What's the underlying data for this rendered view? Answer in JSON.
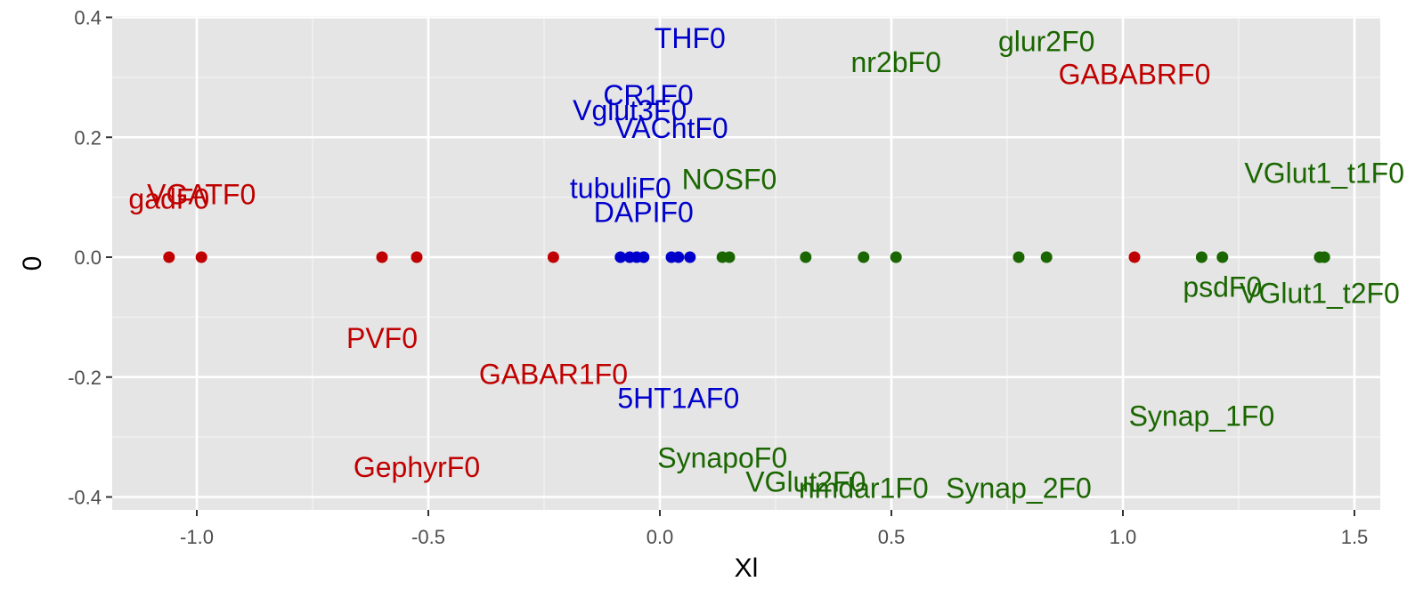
{
  "chart_data": {
    "type": "scatter",
    "title": "",
    "xlabel": "Xl",
    "ylabel": "0",
    "xlim": [
      -1.2,
      1.56
    ],
    "ylim": [
      -0.42,
      0.4
    ],
    "grid": true,
    "legend": "none",
    "background": "#e5e5e5",
    "x_ticks": [
      -1.0,
      -0.5,
      0.0,
      0.5,
      1.0,
      1.5
    ],
    "x_tick_labels": [
      "-1.0",
      "-0.5",
      "0.0",
      "0.5",
      "1.0",
      "1.5"
    ],
    "y_ticks": [
      -0.4,
      -0.2,
      0.0,
      0.2,
      0.4
    ],
    "y_tick_labels": [
      "-0.4",
      "-0.2",
      "0.0",
      "0.2",
      "0.4"
    ],
    "groups": [
      {
        "id": "red",
        "color": "#c00000"
      },
      {
        "id": "blue",
        "color": "#0000cc"
      },
      {
        "id": "green",
        "color": "#1a6600"
      }
    ],
    "points": [
      {
        "x": -1.06,
        "y": 0,
        "group": "red"
      },
      {
        "x": -0.99,
        "y": 0,
        "group": "red"
      },
      {
        "x": -0.6,
        "y": 0,
        "group": "red"
      },
      {
        "x": -0.525,
        "y": 0,
        "group": "red"
      },
      {
        "x": -0.23,
        "y": 0,
        "group": "red"
      },
      {
        "x": -0.085,
        "y": 0,
        "group": "blue"
      },
      {
        "x": -0.065,
        "y": 0,
        "group": "blue"
      },
      {
        "x": -0.05,
        "y": 0,
        "group": "blue"
      },
      {
        "x": -0.035,
        "y": 0,
        "group": "blue"
      },
      {
        "x": 0.025,
        "y": 0,
        "group": "blue"
      },
      {
        "x": 0.04,
        "y": 0,
        "group": "blue"
      },
      {
        "x": 0.065,
        "y": 0,
        "group": "blue"
      },
      {
        "x": 0.135,
        "y": 0,
        "group": "green"
      },
      {
        "x": 0.15,
        "y": 0,
        "group": "green"
      },
      {
        "x": 0.315,
        "y": 0,
        "group": "green"
      },
      {
        "x": 0.44,
        "y": 0,
        "group": "green"
      },
      {
        "x": 0.51,
        "y": 0,
        "group": "green"
      },
      {
        "x": 0.775,
        "y": 0,
        "group": "green"
      },
      {
        "x": 0.835,
        "y": 0,
        "group": "green"
      },
      {
        "x": 1.025,
        "y": 0,
        "group": "red"
      },
      {
        "x": 1.17,
        "y": 0,
        "group": "green"
      },
      {
        "x": 1.215,
        "y": 0,
        "group": "green"
      },
      {
        "x": 1.425,
        "y": 0,
        "group": "green"
      },
      {
        "x": 1.435,
        "y": 0,
        "group": "green"
      }
    ],
    "labels": [
      {
        "text": "VGATF0",
        "x": -0.99,
        "y": 0.105,
        "group": "red"
      },
      {
        "text": "gadF0",
        "x": -1.06,
        "y": 0.097,
        "group": "red"
      },
      {
        "text": "PVF0",
        "x": -0.6,
        "y": -0.135,
        "group": "red"
      },
      {
        "text": "GABAR1F0",
        "x": -0.23,
        "y": -0.195,
        "group": "red"
      },
      {
        "text": "GephyrF0",
        "x": -0.525,
        "y": -0.35,
        "group": "red"
      },
      {
        "text": "GABABRF0",
        "x": 1.025,
        "y": 0.305,
        "group": "red"
      },
      {
        "text": "THF0",
        "x": 0.065,
        "y": 0.365,
        "group": "blue"
      },
      {
        "text": "CR1F0",
        "x": -0.025,
        "y": 0.27,
        "group": "blue"
      },
      {
        "text": "Vglut3F0",
        "x": -0.065,
        "y": 0.245,
        "group": "blue"
      },
      {
        "text": "VAChtF0",
        "x": 0.025,
        "y": 0.215,
        "group": "blue"
      },
      {
        "text": "tubuliF0",
        "x": -0.085,
        "y": 0.115,
        "group": "blue"
      },
      {
        "text": "DAPIF0",
        "x": -0.035,
        "y": 0.075,
        "group": "blue"
      },
      {
        "text": "5HT1AF0",
        "x": 0.04,
        "y": -0.235,
        "group": "blue"
      },
      {
        "text": "NOSF0",
        "x": 0.15,
        "y": 0.13,
        "group": "green"
      },
      {
        "text": "nr2bF0",
        "x": 0.51,
        "y": 0.325,
        "group": "green"
      },
      {
        "text": "glur2F0",
        "x": 0.835,
        "y": 0.36,
        "group": "green"
      },
      {
        "text": "VGlut1_t1F0",
        "x": 1.435,
        "y": 0.14,
        "group": "green"
      },
      {
        "text": "psdF0",
        "x": 1.215,
        "y": -0.05,
        "group": "green"
      },
      {
        "text": "VGlut1_t2F0",
        "x": 1.425,
        "y": -0.06,
        "group": "green"
      },
      {
        "text": "Synap_1F0",
        "x": 1.17,
        "y": -0.265,
        "group": "green"
      },
      {
        "text": "SynapoF0",
        "x": 0.135,
        "y": -0.335,
        "group": "green"
      },
      {
        "text": "VGlut2F0",
        "x": 0.315,
        "y": -0.375,
        "group": "green"
      },
      {
        "text": "nmdar1F0",
        "x": 0.44,
        "y": -0.385,
        "group": "green"
      },
      {
        "text": "Synap_2F0",
        "x": 0.775,
        "y": -0.385,
        "group": "green"
      }
    ]
  }
}
